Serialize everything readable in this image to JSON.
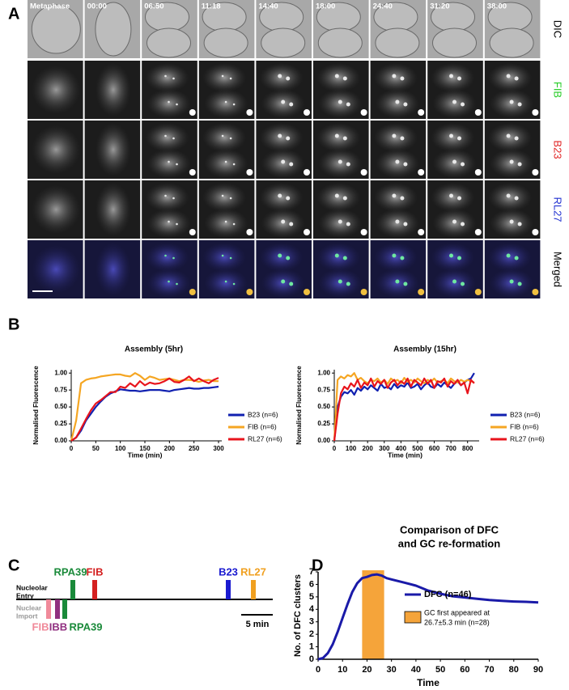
{
  "panel_labels": [
    "A",
    "B",
    "C",
    "D"
  ],
  "panel_a": {
    "times": [
      "Metaphase",
      "00:00",
      "06:50",
      "11:18",
      "14:40",
      "18:00",
      "24:40",
      "31:20",
      "38:00"
    ],
    "channels": [
      {
        "name": "DIC",
        "color": "#000000"
      },
      {
        "name": "FIB",
        "color": "#22cc22"
      },
      {
        "name": "B23",
        "color": "#e02020"
      },
      {
        "name": "RL27",
        "color": "#2030d0"
      },
      {
        "name": "Merged",
        "color": "#000000"
      }
    ]
  },
  "chart_data": [
    {
      "type": "line",
      "title": "Assembly (5hr)",
      "xlabel": "Time (min)",
      "ylabel": "Normalised Fluorescence",
      "x": [
        0,
        10,
        20,
        30,
        40,
        50,
        60,
        70,
        80,
        90,
        100,
        110,
        120,
        130,
        140,
        150,
        160,
        170,
        180,
        190,
        200,
        210,
        220,
        230,
        240,
        250,
        260,
        270,
        280,
        290,
        300
      ],
      "xlim": [
        0,
        300
      ],
      "xticks": [
        0,
        50,
        100,
        150,
        200,
        250,
        300
      ],
      "ylim": [
        0,
        1.05
      ],
      "yticks": [
        {
          "value": 0,
          "label": "0.00"
        },
        {
          "value": 0.25,
          "label": "0.25"
        },
        {
          "value": 0.5,
          "label": "0.50"
        },
        {
          "value": 0.75,
          "label": "0.75"
        },
        {
          "value": 1,
          "label": "1.00"
        }
      ],
      "legend": "right",
      "series": [
        {
          "name": "B23 (n=6)",
          "color": "#1020b0",
          "values": [
            0,
            0.05,
            0.15,
            0.3,
            0.4,
            0.5,
            0.58,
            0.65,
            0.7,
            0.73,
            0.76,
            0.75,
            0.74,
            0.74,
            0.73,
            0.74,
            0.75,
            0.75,
            0.75,
            0.74,
            0.73,
            0.75,
            0.76,
            0.77,
            0.78,
            0.77,
            0.77,
            0.78,
            0.78,
            0.79,
            0.8
          ]
        },
        {
          "name": "FIB (n=6)",
          "color": "#f5a623",
          "values": [
            0,
            0.3,
            0.85,
            0.9,
            0.92,
            0.93,
            0.95,
            0.96,
            0.97,
            0.98,
            0.98,
            0.96,
            0.95,
            1.0,
            0.96,
            0.9,
            0.95,
            0.93,
            0.9,
            0.91,
            0.92,
            0.9,
            0.88,
            0.9,
            0.9,
            0.89,
            0.87,
            0.89,
            0.9,
            0.88,
            0.88
          ]
        },
        {
          "name": "RL27 (n=6)",
          "color": "#e8141c",
          "values": [
            0,
            0.05,
            0.18,
            0.32,
            0.45,
            0.55,
            0.6,
            0.66,
            0.72,
            0.72,
            0.8,
            0.78,
            0.85,
            0.8,
            0.88,
            0.82,
            0.86,
            0.84,
            0.85,
            0.88,
            0.92,
            0.87,
            0.86,
            0.9,
            0.95,
            0.88,
            0.92,
            0.88,
            0.85,
            0.9,
            0.93
          ]
        }
      ]
    },
    {
      "type": "line",
      "title": "Assembly (15hr)",
      "xlabel": "Time (min)",
      "ylabel": "Normalised Fluorescence",
      "x": [
        0,
        20,
        40,
        60,
        80,
        100,
        120,
        140,
        160,
        180,
        200,
        220,
        240,
        260,
        280,
        300,
        320,
        340,
        360,
        380,
        400,
        420,
        440,
        460,
        480,
        500,
        520,
        540,
        560,
        580,
        600,
        620,
        640,
        660,
        680,
        700,
        720,
        740,
        760,
        780,
        800,
        820,
        840
      ],
      "xlim": [
        0,
        850
      ],
      "xticks": [
        0,
        100,
        200,
        300,
        400,
        500,
        600,
        700,
        800
      ],
      "ylim": [
        0,
        1.05
      ],
      "yticks": [
        {
          "value": 0,
          "label": "0.00"
        },
        {
          "value": 0.25,
          "label": "0.25"
        },
        {
          "value": 0.5,
          "label": "0.50"
        },
        {
          "value": 0.75,
          "label": "0.75"
        },
        {
          "value": 1,
          "label": "1.00"
        }
      ],
      "legend": "right",
      "series": [
        {
          "name": "B23 (n=6)",
          "color": "#1020b0",
          "values": [
            0,
            0.5,
            0.65,
            0.72,
            0.7,
            0.75,
            0.68,
            0.78,
            0.74,
            0.8,
            0.76,
            0.82,
            0.78,
            0.74,
            0.84,
            0.78,
            0.8,
            0.76,
            0.84,
            0.78,
            0.82,
            0.8,
            0.86,
            0.78,
            0.8,
            0.84,
            0.76,
            0.82,
            0.86,
            0.8,
            0.78,
            0.84,
            0.8,
            0.86,
            0.82,
            0.78,
            0.84,
            0.88,
            0.82,
            0.86,
            0.9,
            0.92,
            1.0
          ]
        },
        {
          "name": "FIB (n=6)",
          "color": "#f5a623",
          "values": [
            0,
            0.9,
            0.95,
            0.92,
            0.97,
            0.95,
            1.0,
            0.9,
            0.93,
            0.88,
            0.85,
            0.9,
            0.88,
            0.92,
            0.86,
            0.9,
            0.84,
            0.92,
            0.88,
            0.9,
            0.85,
            0.93,
            0.87,
            0.9,
            0.86,
            0.92,
            0.88,
            0.85,
            0.9,
            0.87,
            0.92,
            0.86,
            0.88,
            0.9,
            0.85,
            0.92,
            0.88,
            0.86,
            0.9,
            0.87,
            0.9,
            0.88,
            0.86
          ]
        },
        {
          "name": "RL27 (n=6)",
          "color": "#e8141c",
          "values": [
            0,
            0.4,
            0.7,
            0.8,
            0.76,
            0.85,
            0.8,
            0.9,
            0.78,
            0.86,
            0.82,
            0.92,
            0.8,
            0.88,
            0.84,
            0.9,
            0.78,
            0.86,
            0.9,
            0.82,
            0.88,
            0.84,
            0.92,
            0.8,
            0.9,
            0.86,
            0.82,
            0.92,
            0.84,
            0.9,
            0.78,
            0.88,
            0.86,
            0.92,
            0.8,
            0.88,
            0.84,
            0.9,
            0.82,
            0.86,
            0.7,
            0.9,
            0.85
          ]
        }
      ]
    },
    {
      "type": "line",
      "title": [
        "Comparison of DFC",
        "and GC re-formation"
      ],
      "xlabel": "Time",
      "ylabel": "No. of DFC clusters",
      "x": [
        0,
        2,
        4,
        6,
        8,
        10,
        12,
        14,
        16,
        18,
        20,
        22,
        24,
        26,
        28,
        30,
        35,
        40,
        45,
        50,
        55,
        60,
        65,
        70,
        75,
        80,
        85,
        90
      ],
      "xlim": [
        0,
        90
      ],
      "xticks": [
        0,
        10,
        20,
        30,
        40,
        50,
        60,
        70,
        80,
        90
      ],
      "ylim": [
        0,
        7
      ],
      "yticks": [
        0,
        1,
        2,
        3,
        4,
        5,
        6,
        7
      ],
      "legend": "lower right",
      "series": [
        {
          "name": "DFC (n=46)",
          "color": "#1a1aa8",
          "values": [
            0,
            0.1,
            0.5,
            1.2,
            2.2,
            3.3,
            4.4,
            5.4,
            6.1,
            6.5,
            6.6,
            6.75,
            6.8,
            6.7,
            6.5,
            6.4,
            6.15,
            5.9,
            5.5,
            5.25,
            5.05,
            4.95,
            4.85,
            4.75,
            4.68,
            4.63,
            4.6,
            4.55
          ]
        }
      ],
      "band": {
        "x0": 18,
        "x1": 27,
        "color": "#f5a43a",
        "label": [
          "GC first appeared at",
          "26.7±5.3 min (n=28)"
        ]
      }
    }
  ],
  "panel_c": {
    "rows": [
      [
        "Nucleolar",
        "Entry"
      ],
      [
        "Nuclear",
        "Import"
      ]
    ],
    "top_labels": [
      {
        "text": "RPA39",
        "color": "#1a8a3a"
      },
      {
        "text": "FIB",
        "color": "#d42020"
      },
      {
        "text": "B23",
        "color": "#1a1ad0"
      },
      {
        "text": "RL27",
        "color": "#f0a020"
      }
    ],
    "bottom_labels": [
      {
        "text": "FIB",
        "color": "#f08a9a"
      },
      {
        "text": "IBB",
        "color": "#903080"
      },
      {
        "text": "RPA39",
        "color": "#1a8a3a"
      }
    ],
    "scale": "5 min"
  }
}
